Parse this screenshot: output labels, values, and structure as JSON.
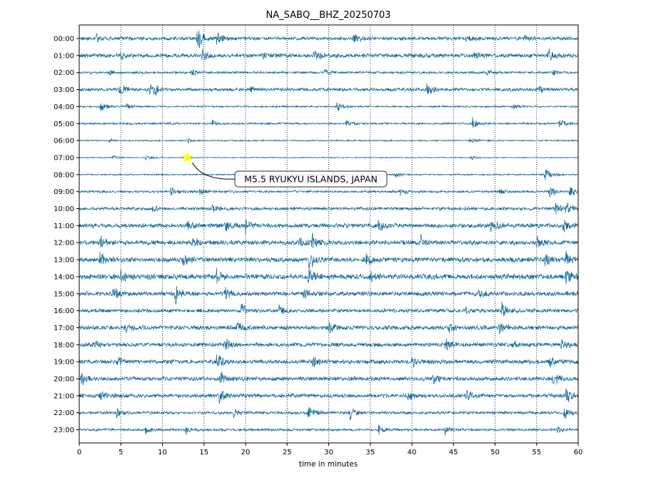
{
  "chart_data": {
    "type": "line",
    "title": "NA_SABQ__BHZ_20250703",
    "xlabel": "time in minutes",
    "ylabel": "",
    "xlim": [
      0,
      60
    ],
    "x_ticks": [
      0,
      5,
      10,
      15,
      20,
      25,
      30,
      35,
      40,
      45,
      50,
      55,
      60
    ],
    "grid": "vertical dotted lines at 5-minute intervals",
    "legend": "none",
    "trace_color": "#0f6696",
    "rows": [
      {
        "label": "00:00",
        "noise": 0.25,
        "bursts": [
          {
            "t": 2.1,
            "a": 0.5
          },
          {
            "t": 14.2,
            "a": 1.6
          },
          {
            "t": 16.5,
            "a": 1.2
          },
          {
            "t": 33.0,
            "a": 0.6
          },
          {
            "t": 46.5,
            "a": 0.6
          },
          {
            "t": 53.5,
            "a": 0.5
          }
        ]
      },
      {
        "label": "01:00",
        "noise": 0.28,
        "bursts": [
          {
            "t": 5.0,
            "a": 0.5
          },
          {
            "t": 14.8,
            "a": 0.8
          },
          {
            "t": 22.0,
            "a": 0.5
          },
          {
            "t": 28.2,
            "a": 0.9
          },
          {
            "t": 47.5,
            "a": 0.5
          },
          {
            "t": 56.3,
            "a": 1.0
          }
        ]
      },
      {
        "label": "02:00",
        "noise": 0.16,
        "bursts": [
          {
            "t": 3.5,
            "a": 0.4
          },
          {
            "t": 13.5,
            "a": 0.5
          },
          {
            "t": 29.5,
            "a": 0.5
          },
          {
            "t": 49.0,
            "a": 0.4
          },
          {
            "t": 57.0,
            "a": 0.4
          }
        ]
      },
      {
        "label": "03:00",
        "noise": 0.22,
        "bursts": [
          {
            "t": 4.8,
            "a": 0.9
          },
          {
            "t": 8.5,
            "a": 0.7
          },
          {
            "t": 9.0,
            "a": 0.6
          },
          {
            "t": 20.5,
            "a": 0.4
          },
          {
            "t": 41.8,
            "a": 0.8
          },
          {
            "t": 55.3,
            "a": 0.5
          }
        ]
      },
      {
        "label": "04:00",
        "noise": 0.12,
        "bursts": [
          {
            "t": 2.6,
            "a": 0.9
          },
          {
            "t": 5.7,
            "a": 0.4
          },
          {
            "t": 31.0,
            "a": 0.6
          },
          {
            "t": 52.2,
            "a": 0.4
          }
        ]
      },
      {
        "label": "05:00",
        "noise": 0.14,
        "bursts": [
          {
            "t": 16.0,
            "a": 0.4
          },
          {
            "t": 32.0,
            "a": 0.4
          },
          {
            "t": 47.3,
            "a": 0.8
          },
          {
            "t": 57.7,
            "a": 0.6
          }
        ]
      },
      {
        "label": "06:00",
        "noise": 0.1,
        "bursts": [
          {
            "t": 3.5,
            "a": 0.3
          },
          {
            "t": 13.0,
            "a": 0.35
          },
          {
            "t": 47.0,
            "a": 0.35
          }
        ]
      },
      {
        "label": "07:00",
        "noise": 0.07,
        "bursts": [
          {
            "t": 4.0,
            "a": 0.4
          },
          {
            "t": 8.0,
            "a": 0.5
          },
          {
            "t": 47.0,
            "a": 0.4
          }
        ]
      },
      {
        "label": "08:00",
        "noise": 0.1,
        "bursts": [
          {
            "t": 30.5,
            "a": 0.6
          },
          {
            "t": 38.0,
            "a": 0.5
          },
          {
            "t": 56.0,
            "a": 1.3
          }
        ]
      },
      {
        "label": "09:00",
        "noise": 0.16,
        "bursts": [
          {
            "t": 11.0,
            "a": 0.6
          },
          {
            "t": 14.5,
            "a": 0.5
          },
          {
            "t": 38.5,
            "a": 0.6
          },
          {
            "t": 50.5,
            "a": 0.6
          },
          {
            "t": 56.5,
            "a": 1.0
          },
          {
            "t": 59.0,
            "a": 0.9
          }
        ]
      },
      {
        "label": "10:00",
        "noise": 0.22,
        "bursts": [
          {
            "t": 8.8,
            "a": 0.5
          },
          {
            "t": 16.0,
            "a": 0.6
          },
          {
            "t": 57.2,
            "a": 1.1
          },
          {
            "t": 58.5,
            "a": 0.9
          }
        ]
      },
      {
        "label": "11:00",
        "noise": 0.3,
        "bursts": [
          {
            "t": 13.0,
            "a": 0.7
          },
          {
            "t": 17.5,
            "a": 1.1
          },
          {
            "t": 20.0,
            "a": 0.9
          },
          {
            "t": 36.0,
            "a": 1.0
          },
          {
            "t": 49.5,
            "a": 0.8
          },
          {
            "t": 58.2,
            "a": 1.0
          }
        ]
      },
      {
        "label": "12:00",
        "noise": 0.32,
        "bursts": [
          {
            "t": 2.5,
            "a": 0.9
          },
          {
            "t": 13.5,
            "a": 0.9
          },
          {
            "t": 26.5,
            "a": 0.8
          },
          {
            "t": 28.0,
            "a": 1.0
          },
          {
            "t": 41.0,
            "a": 0.8
          },
          {
            "t": 55.0,
            "a": 0.9
          }
        ]
      },
      {
        "label": "13:00",
        "noise": 0.34,
        "bursts": [
          {
            "t": 2.5,
            "a": 1.0
          },
          {
            "t": 12.5,
            "a": 0.9
          },
          {
            "t": 27.6,
            "a": 1.3
          },
          {
            "t": 34.5,
            "a": 0.9
          },
          {
            "t": 56.0,
            "a": 1.1
          },
          {
            "t": 58.5,
            "a": 1.0
          }
        ]
      },
      {
        "label": "14:00",
        "noise": 0.36,
        "bursts": [
          {
            "t": 5.0,
            "a": 1.0
          },
          {
            "t": 16.5,
            "a": 1.0
          },
          {
            "t": 27.5,
            "a": 1.4
          },
          {
            "t": 35.0,
            "a": 1.0
          },
          {
            "t": 58.5,
            "a": 1.0
          }
        ]
      },
      {
        "label": "15:00",
        "noise": 0.3,
        "bursts": [
          {
            "t": 4.0,
            "a": 0.9
          },
          {
            "t": 11.5,
            "a": 1.4
          },
          {
            "t": 17.5,
            "a": 0.9
          },
          {
            "t": 27.0,
            "a": 0.8
          },
          {
            "t": 48.0,
            "a": 0.7
          }
        ]
      },
      {
        "label": "16:00",
        "noise": 0.25,
        "bursts": [
          {
            "t": 19.5,
            "a": 0.9
          },
          {
            "t": 24.0,
            "a": 0.7
          },
          {
            "t": 46.5,
            "a": 0.6
          },
          {
            "t": 50.8,
            "a": 1.1
          }
        ]
      },
      {
        "label": "17:00",
        "noise": 0.3,
        "bursts": [
          {
            "t": 5.5,
            "a": 0.8
          },
          {
            "t": 19.0,
            "a": 0.9
          },
          {
            "t": 30.0,
            "a": 0.8
          },
          {
            "t": 44.5,
            "a": 0.8
          },
          {
            "t": 50.5,
            "a": 0.9
          }
        ]
      },
      {
        "label": "18:00",
        "noise": 0.28,
        "bursts": [
          {
            "t": 1.5,
            "a": 0.8
          },
          {
            "t": 17.5,
            "a": 1.0
          },
          {
            "t": 44.0,
            "a": 0.8
          },
          {
            "t": 52.0,
            "a": 0.7
          },
          {
            "t": 58.0,
            "a": 0.8
          }
        ]
      },
      {
        "label": "19:00",
        "noise": 0.3,
        "bursts": [
          {
            "t": 4.5,
            "a": 0.8
          },
          {
            "t": 16.5,
            "a": 1.4
          },
          {
            "t": 28.0,
            "a": 0.8
          },
          {
            "t": 40.0,
            "a": 0.8
          },
          {
            "t": 56.5,
            "a": 0.8
          }
        ]
      },
      {
        "label": "20:00",
        "noise": 0.28,
        "bursts": [
          {
            "t": 0.3,
            "a": 1.0
          },
          {
            "t": 17.0,
            "a": 0.8
          },
          {
            "t": 42.5,
            "a": 0.7
          },
          {
            "t": 57.0,
            "a": 1.0
          }
        ]
      },
      {
        "label": "21:00",
        "noise": 0.27,
        "bursts": [
          {
            "t": 2.5,
            "a": 0.8
          },
          {
            "t": 16.8,
            "a": 0.9
          },
          {
            "t": 39.5,
            "a": 0.7
          },
          {
            "t": 46.5,
            "a": 0.9
          },
          {
            "t": 58.5,
            "a": 1.0
          }
        ]
      },
      {
        "label": "22:00",
        "noise": 0.2,
        "bursts": [
          {
            "t": 4.5,
            "a": 0.6
          },
          {
            "t": 18.5,
            "a": 0.7
          },
          {
            "t": 27.5,
            "a": 1.0
          },
          {
            "t": 32.5,
            "a": 0.9
          },
          {
            "t": 58.3,
            "a": 0.8
          }
        ]
      },
      {
        "label": "23:00",
        "noise": 0.17,
        "bursts": [
          {
            "t": 8.0,
            "a": 0.6
          },
          {
            "t": 12.8,
            "a": 0.6
          },
          {
            "t": 36.0,
            "a": 0.5
          },
          {
            "t": 44.0,
            "a": 0.6
          },
          {
            "t": 57.5,
            "a": 0.5
          }
        ]
      }
    ],
    "annotations": [
      {
        "text": "M5.5 RYUKYU ISLANDS, JAPAN",
        "row": "07:00",
        "minute": 13.0,
        "marker": "star",
        "marker_color": "#ffff00"
      }
    ]
  }
}
